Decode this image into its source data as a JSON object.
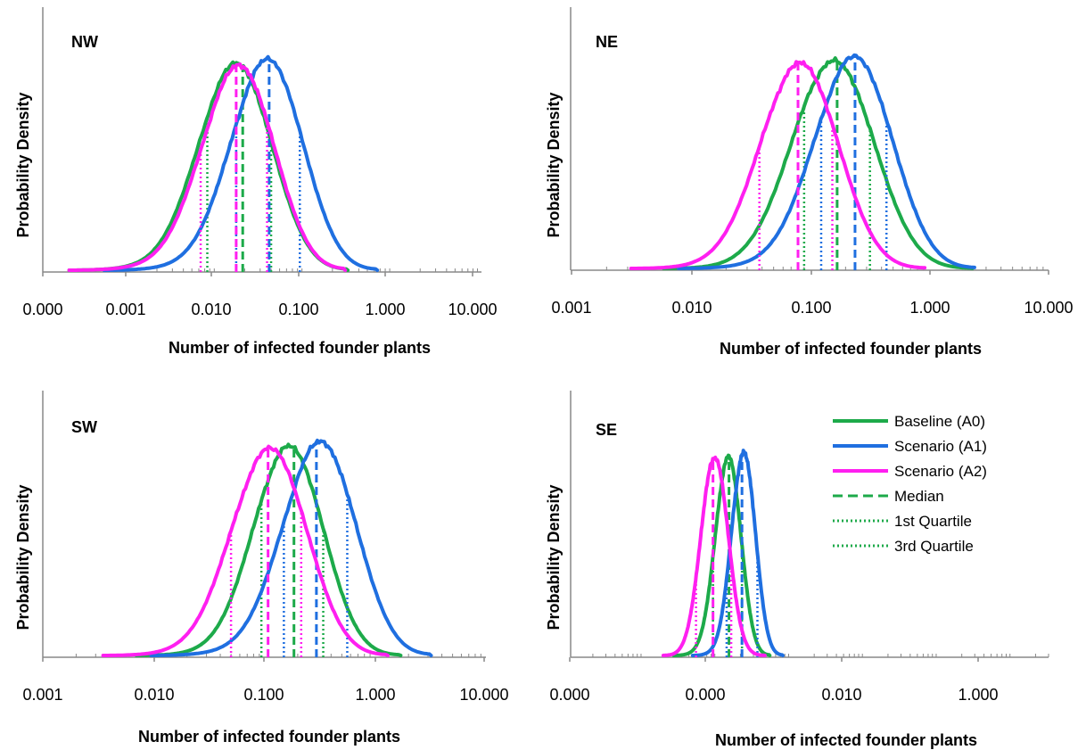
{
  "colors": {
    "baseline": "#1daa4a",
    "scenario_a1": "#1f6fe0",
    "scenario_a2": "#ff1ff0",
    "axis": "#888888"
  },
  "legend": [
    {
      "label": "Baseline (A0)",
      "style": "solid",
      "color": "#1daa4a"
    },
    {
      "label": "Scenario (A1)",
      "style": "solid",
      "color": "#1f6fe0"
    },
    {
      "label": "Scenario (A2)",
      "style": "solid",
      "color": "#ff1ff0"
    },
    {
      "label": "Median",
      "style": "dashed",
      "color": "#1daa4a"
    },
    {
      "label": "1st Quartile",
      "style": "dotted",
      "color": "#1daa4a"
    },
    {
      "label": "3rd Quartile",
      "style": "dotted",
      "color": "#1daa4a"
    }
  ],
  "chart_data": [
    {
      "type": "area",
      "panel_title": "NW",
      "xlabel": "Number of infected founder plants",
      "ylabel": "Probability Density",
      "x_scale": "log",
      "x_tick_labels": [
        "0.000",
        "0.001",
        "0.010",
        "0.100",
        "1.000",
        "10.000"
      ],
      "xlim": [
        0.0001,
        10
      ],
      "series": [
        {
          "name": "Baseline (A0)",
          "range": [
            0.0002,
            0.3
          ],
          "peak": 0.022,
          "quartiles": [
            0.0075,
            0.019,
            0.04
          ]
        },
        {
          "name": "Scenario (A1)",
          "range": [
            0.0005,
            0.65
          ],
          "peak": 0.05,
          "quartiles": [
            0.016,
            0.038,
            0.085
          ]
        },
        {
          "name": "Scenario (A2)",
          "range": [
            0.0002,
            0.28
          ],
          "peak": 0.025,
          "quartiles": [
            0.0063,
            0.016,
            0.036
          ]
        }
      ]
    },
    {
      "type": "area",
      "panel_title": "NE",
      "xlabel": "Number of infected founder plants",
      "ylabel": "Probability Density",
      "x_scale": "log",
      "x_tick_labels": [
        "0.001",
        "0.010",
        "0.100",
        "1.000",
        "10.000"
      ],
      "xlim": [
        0.001,
        10
      ],
      "series": [
        {
          "name": "Baseline (A0)",
          "range": [
            0.006,
            2.3
          ],
          "peak": 0.18,
          "quartiles": [
            0.09,
            0.17,
            0.32
          ]
        },
        {
          "name": "Scenario (A1)",
          "range": [
            0.008,
            2.4
          ],
          "peak": 0.3,
          "quartiles": [
            0.125,
            0.24,
            0.44
          ]
        },
        {
          "name": "Scenario (A2)",
          "range": [
            0.0032,
            0.92
          ],
          "peak": 0.1,
          "quartiles": [
            0.038,
            0.08,
            0.155
          ]
        }
      ]
    },
    {
      "type": "area",
      "panel_title": "SW",
      "xlabel": "Number of infected founder plants",
      "ylabel": "Probability Density",
      "x_scale": "log",
      "x_tick_labels": [
        "0.001",
        "0.010",
        "0.100",
        "1.000",
        "10.000"
      ],
      "xlim": [
        0.001,
        10
      ],
      "series": [
        {
          "name": "Baseline (A0)",
          "range": [
            0.007,
            1.7
          ],
          "peak": 0.2,
          "quartiles": [
            0.094,
            0.185,
            0.34
          ]
        },
        {
          "name": "Scenario (A1)",
          "range": [
            0.0095,
            3.2
          ],
          "peak": 0.42,
          "quartiles": [
            0.15,
            0.295,
            0.56
          ]
        },
        {
          "name": "Scenario (A2)",
          "range": [
            0.0035,
            1.3
          ],
          "peak": 0.14,
          "quartiles": [
            0.05,
            0.108,
            0.215
          ]
        }
      ]
    },
    {
      "type": "area",
      "panel_title": "SE",
      "xlabel": "Number of infected founder plants",
      "ylabel": "Probability Density",
      "x_scale": "log",
      "x_tick_labels": [
        "0.000",
        "0.000",
        "0.010",
        "1.000"
      ],
      "xlim": [
        1e-05,
        30
      ],
      "series": [
        {
          "name": "Baseline (A0)",
          "range": [
            0.00025,
            0.005
          ],
          "peak": 0.0015,
          "quartiles": [
            0.00085,
            0.0014,
            0.0021
          ]
        },
        {
          "name": "Scenario (A1)",
          "range": [
            0.00045,
            0.0075
          ],
          "peak": 0.0024,
          "quartiles": [
            0.0013,
            0.0021,
            0.0034
          ]
        },
        {
          "name": "Scenario (A2)",
          "range": [
            0.00018,
            0.0043
          ],
          "peak": 0.0009,
          "quartiles": [
            0.0005,
            0.00085,
            0.0015
          ]
        }
      ]
    }
  ]
}
